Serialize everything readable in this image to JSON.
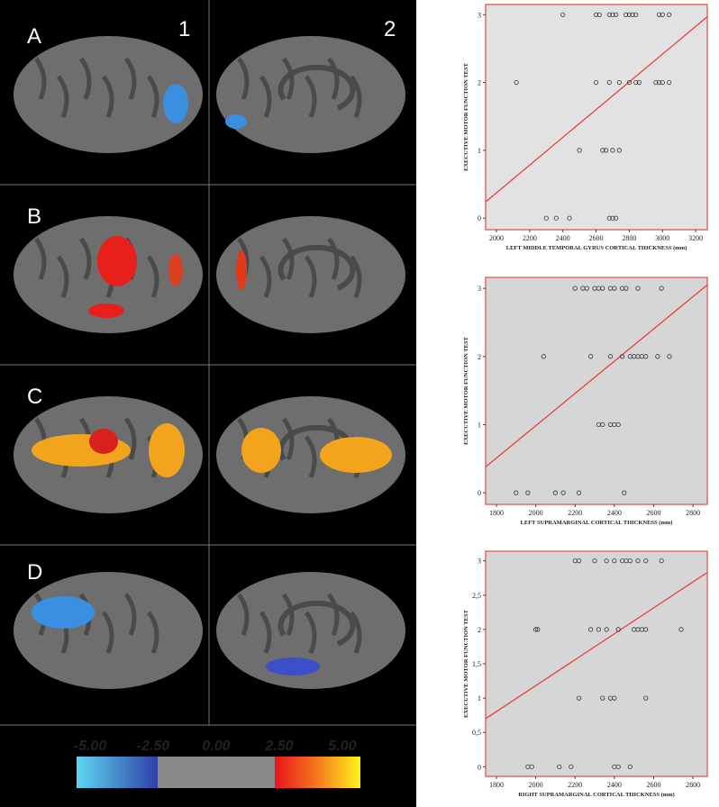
{
  "panels": {
    "rows": [
      "A",
      "B",
      "C",
      "D"
    ],
    "columns": [
      "1",
      "2"
    ]
  },
  "colorbar": {
    "range": [
      -5,
      5
    ],
    "ticks": [
      {
        "value": -5,
        "label": "-5.00"
      },
      {
        "value": -2.5,
        "label": "-2.50"
      },
      {
        "value": 0,
        "label": "0.00"
      },
      {
        "value": 2.5,
        "label": "2.50"
      },
      {
        "value": 5,
        "label": "5.00"
      }
    ]
  },
  "chart_data": [
    {
      "type": "scatter",
      "xlabel": "LEFT MIDDLE TEMPORAL GYRUS CORTICAL THICKNESS (mm)",
      "ylabel": "EXECUTIVE MOTOR FUNCTION TEST",
      "x": [
        2400,
        2600,
        2620,
        2680,
        2700,
        2720,
        2780,
        2800,
        2820,
        2840,
        2980,
        3000,
        3040,
        2120,
        2600,
        2680,
        2740,
        2800,
        2840,
        2860,
        2960,
        2980,
        3000,
        3040,
        2500,
        2640,
        2660,
        2700,
        2740,
        2300,
        2360,
        2440,
        2680,
        2700,
        2720
      ],
      "y": [
        3,
        3,
        3,
        3,
        3,
        3,
        3,
        3,
        3,
        3,
        3,
        3,
        3,
        2,
        2,
        2,
        2,
        2,
        2,
        2,
        2,
        2,
        2,
        2,
        1,
        1,
        1,
        1,
        1,
        0,
        0,
        0,
        0,
        0,
        0
      ],
      "fit": {
        "x": [
          1935,
          3270
        ],
        "y": [
          0.24,
          2.97
        ],
        "color": "#e8403a"
      },
      "background": "#e2e2e2",
      "border": "#e06a6a",
      "xlim": [
        1935,
        3270
      ],
      "xticks": [
        2000,
        2200,
        2400,
        2600,
        2800,
        3000,
        3200
      ],
      "ylim": [
        -0.17,
        3.15
      ],
      "yticks": [
        0,
        1,
        2,
        3
      ]
    },
    {
      "type": "scatter",
      "xlabel": "LEFT SUPRAMARGINAL CORTICAL THICKNESS (mm)",
      "ylabel": "EXECUTIVE MOTOR FUNCTION TEST",
      "x": [
        2200,
        2240,
        2260,
        2300,
        2320,
        2340,
        2380,
        2400,
        2440,
        2460,
        2520,
        2640,
        2040,
        2280,
        2380,
        2440,
        2480,
        2500,
        2520,
        2540,
        2560,
        2620,
        2680,
        2320,
        2340,
        2380,
        2400,
        2420,
        1900,
        1960,
        2100,
        2140,
        2220,
        2450
      ],
      "y": [
        3,
        3,
        3,
        3,
        3,
        3,
        3,
        3,
        3,
        3,
        3,
        3,
        2,
        2,
        2,
        2,
        2,
        2,
        2,
        2,
        2,
        2,
        2,
        1,
        1,
        1,
        1,
        1,
        0,
        0,
        0,
        0,
        0,
        0
      ],
      "fit": {
        "x": [
          1745,
          2873
        ],
        "y": [
          0.38,
          3.05
        ],
        "color": "#e8403a"
      },
      "background": "#d6d6d6",
      "border": "#e06a6a",
      "xlim": [
        1745,
        2873
      ],
      "xticks": [
        1800,
        2000,
        2200,
        2400,
        2600,
        2800
      ],
      "ylim": [
        -0.17,
        3.16
      ],
      "yticks": [
        0,
        1,
        2,
        3
      ]
    },
    {
      "type": "scatter",
      "xlabel": "RIGHT SUPRAMARGINAL CORTICAL THICKNESS (mm)",
      "ylabel": "EXECUTIVE MOTOR FUNCTION TEST",
      "x": [
        2200,
        2220,
        2300,
        2360,
        2400,
        2440,
        2460,
        2480,
        2520,
        2560,
        2640,
        2000,
        2010,
        2280,
        2320,
        2360,
        2420,
        2500,
        2520,
        2540,
        2560,
        2740,
        2220,
        2340,
        2380,
        2400,
        2560,
        1960,
        1980,
        2120,
        2180,
        2400,
        2420,
        2480
      ],
      "y": [
        3,
        3,
        3,
        3,
        3,
        3,
        3,
        3,
        3,
        3,
        3,
        2,
        2,
        2,
        2,
        2,
        2,
        2,
        2,
        2,
        2,
        2,
        1,
        1,
        1,
        1,
        1,
        0,
        0,
        0,
        0,
        0,
        0,
        0
      ],
      "fit": {
        "x": [
          1745,
          2873
        ],
        "y": [
          0.7,
          2.83
        ],
        "color": "#e8403a"
      },
      "background": "#d6d6d6",
      "border": "#e06a6a",
      "xlim": [
        1745,
        2873
      ],
      "xticks": [
        1800,
        2000,
        2200,
        2400,
        2600,
        2800
      ],
      "ylim": [
        -0.14,
        3.14
      ],
      "yticks": [
        0,
        {
          "value": 0.5,
          "label": "0,5"
        },
        1,
        {
          "value": 1.5,
          "label": "1,5"
        },
        2,
        {
          "value": 2.5,
          "label": "2,5"
        },
        3
      ]
    }
  ]
}
